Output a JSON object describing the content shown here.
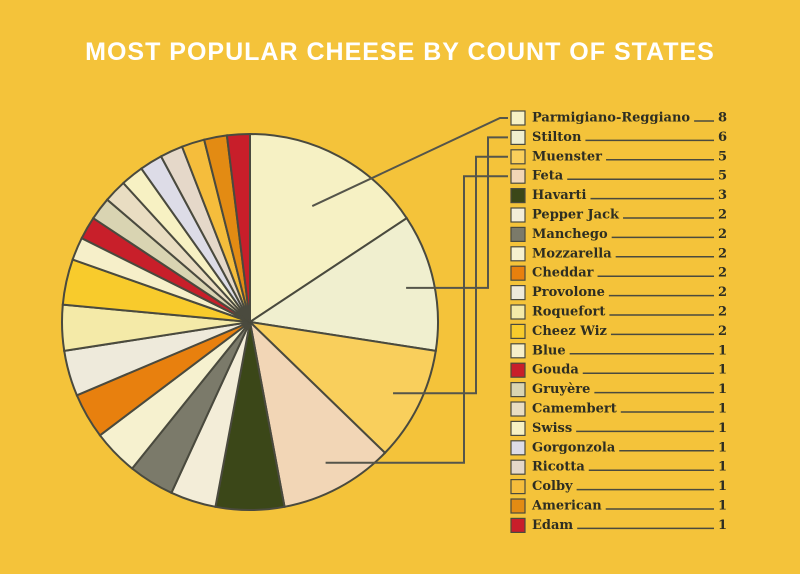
{
  "chart_data": {
    "type": "pie",
    "title": "MOST POPULAR CHEESE BY COUNT OF STATES",
    "categories": [
      "Parmigiano-Reggiano",
      "Stilton",
      "Muenster",
      "Feta",
      "Havarti",
      "Pepper Jack",
      "Manchego",
      "Mozzarella",
      "Cheddar",
      "Provolone",
      "Roquefort",
      "Cheez Wiz",
      "Blue",
      "Gouda",
      "Gruyère",
      "Camembert",
      "Swiss",
      "Gorgonzola",
      "Ricotta",
      "Colby",
      "American",
      "Edam"
    ],
    "values": [
      8,
      6,
      5,
      5,
      3,
      2,
      2,
      2,
      2,
      2,
      2,
      2,
      1,
      1,
      1,
      1,
      1,
      1,
      1,
      1,
      1,
      1
    ],
    "colors": [
      "#f6f1c4",
      "#f0efcf",
      "#f9cf5c",
      "#f2d6b6",
      "#3b4718",
      "#f3edd8",
      "#7b7a6a",
      "#f6f1cf",
      "#e8800e",
      "#eeeadb",
      "#f4eaa8",
      "#f8cb2c",
      "#f6efc9",
      "#c81f2a",
      "#d9d4b2",
      "#e9ddc2",
      "#f7f1c3",
      "#dddce7",
      "#e5d8c9",
      "#f5bd3c",
      "#e38b13",
      "#c81e2a"
    ]
  }
}
